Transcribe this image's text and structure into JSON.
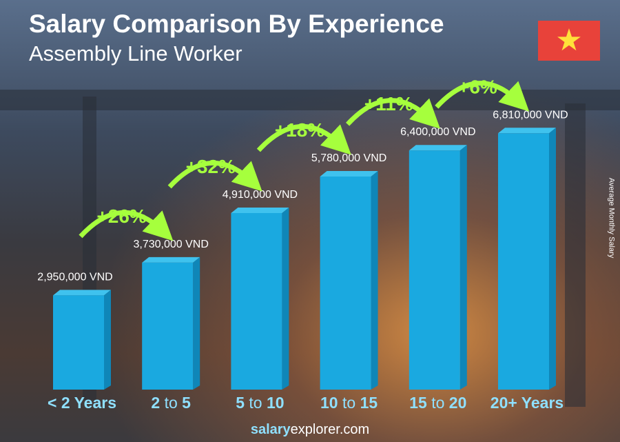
{
  "title": "Salary Comparison By Experience",
  "subtitle": "Assembly Line Worker",
  "flag_icon": "vietnam-flag-star-icon",
  "brand": {
    "bold": "salary",
    "regular": "explorer",
    "suffix": ".com"
  },
  "colors": {
    "bar": "#1aa9e0",
    "bar_side": "#0f86b8",
    "bar_top": "#3fc2ee",
    "pct": "#a6ff3d",
    "category": "#8fe0ff"
  },
  "chart_data": {
    "type": "bar",
    "title": "Salary Comparison By Experience",
    "subtitle": "Assembly Line Worker",
    "ylabel": "Average Monthly Salary",
    "categories": [
      {
        "a": "< 2 Years",
        "to": "",
        "b": ""
      },
      {
        "a": "2",
        "to": " to ",
        "b": "5"
      },
      {
        "a": "5",
        "to": " to ",
        "b": "10"
      },
      {
        "a": "10",
        "to": " to ",
        "b": "15"
      },
      {
        "a": "15",
        "to": " to ",
        "b": "20"
      },
      {
        "a": "20+ Years",
        "to": "",
        "b": ""
      }
    ],
    "values": [
      2950000,
      3730000,
      4910000,
      5780000,
      6400000,
      6810000
    ],
    "value_labels": [
      "2,950,000 VND",
      "3,730,000 VND",
      "4,910,000 VND",
      "5,780,000 VND",
      "6,400,000 VND",
      "6,810,000 VND"
    ],
    "increases": [
      "+26%",
      "+32%",
      "+18%",
      "+11%",
      "+6%"
    ],
    "unit": "VND"
  }
}
